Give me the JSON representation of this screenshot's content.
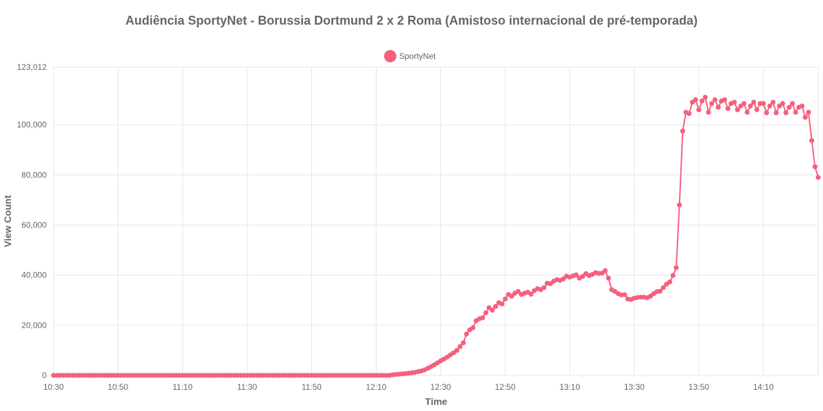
{
  "chart_data": {
    "type": "line",
    "title": "Audiência SportyNet - Borussia Dortmund 2 x 2 Roma (Amistoso internacional de pré-temporada)",
    "xlabel": "Time",
    "ylabel": "View Count",
    "x_range_minutes": [
      "10:30",
      "14:27"
    ],
    "ylim": [
      0,
      123012
    ],
    "y_ticks": [
      0,
      20000,
      40000,
      60000,
      80000,
      100000,
      123012
    ],
    "y_tick_labels": [
      "0",
      "20,000",
      "40,000",
      "60,000",
      "80,000",
      "100,000",
      "123,012"
    ],
    "x_ticks": [
      "10:30",
      "10:50",
      "11:10",
      "11:30",
      "11:50",
      "12:10",
      "12:30",
      "12:50",
      "13:10",
      "13:30",
      "13:50",
      "14:10"
    ],
    "grid": true,
    "legend": "top-center",
    "series": [
      {
        "name": "SportyNet",
        "color": "#f5607f",
        "x": [
          "10:30",
          "10:31",
          "10:32",
          "10:33",
          "10:34",
          "10:35",
          "10:36",
          "10:37",
          "10:38",
          "10:39",
          "10:40",
          "10:41",
          "10:42",
          "10:43",
          "10:44",
          "10:45",
          "10:46",
          "10:47",
          "10:48",
          "10:49",
          "10:50",
          "10:51",
          "10:52",
          "10:53",
          "10:54",
          "10:55",
          "10:56",
          "10:57",
          "10:58",
          "10:59",
          "11:00",
          "11:01",
          "11:02",
          "11:03",
          "11:04",
          "11:05",
          "11:06",
          "11:07",
          "11:08",
          "11:09",
          "11:10",
          "11:11",
          "11:12",
          "11:13",
          "11:14",
          "11:15",
          "11:16",
          "11:17",
          "11:18",
          "11:19",
          "11:20",
          "11:21",
          "11:22",
          "11:23",
          "11:24",
          "11:25",
          "11:26",
          "11:27",
          "11:28",
          "11:29",
          "11:30",
          "11:31",
          "11:32",
          "11:33",
          "11:34",
          "11:35",
          "11:36",
          "11:37",
          "11:38",
          "11:39",
          "11:40",
          "11:41",
          "11:42",
          "11:43",
          "11:44",
          "11:45",
          "11:46",
          "11:47",
          "11:48",
          "11:49",
          "11:50",
          "11:51",
          "11:52",
          "11:53",
          "11:54",
          "11:55",
          "11:56",
          "11:57",
          "11:58",
          "11:59",
          "12:00",
          "12:01",
          "12:02",
          "12:03",
          "12:04",
          "12:05",
          "12:06",
          "12:07",
          "12:08",
          "12:09",
          "12:10",
          "12:11",
          "12:12",
          "12:13",
          "12:14",
          "12:15",
          "12:16",
          "12:17",
          "12:18",
          "12:19",
          "12:20",
          "12:21",
          "12:22",
          "12:23",
          "12:24",
          "12:25",
          "12:26",
          "12:27",
          "12:28",
          "12:29",
          "12:30",
          "12:31",
          "12:32",
          "12:33",
          "12:34",
          "12:35",
          "12:36",
          "12:37",
          "12:38",
          "12:39",
          "12:40",
          "12:41",
          "12:42",
          "12:43",
          "12:44",
          "12:45",
          "12:46",
          "12:47",
          "12:48",
          "12:49",
          "12:50",
          "12:51",
          "12:52",
          "12:53",
          "12:54",
          "12:55",
          "12:56",
          "12:57",
          "12:58",
          "12:59",
          "13:00",
          "13:01",
          "13:02",
          "13:03",
          "13:04",
          "13:05",
          "13:06",
          "13:07",
          "13:08",
          "13:09",
          "13:10",
          "13:11",
          "13:12",
          "13:13",
          "13:14",
          "13:15",
          "13:16",
          "13:17",
          "13:18",
          "13:19",
          "13:20",
          "13:21",
          "13:22",
          "13:23",
          "13:24",
          "13:25",
          "13:26",
          "13:27",
          "13:28",
          "13:29",
          "13:30",
          "13:31",
          "13:32",
          "13:33",
          "13:34",
          "13:35",
          "13:36",
          "13:37",
          "13:38",
          "13:39",
          "13:40",
          "13:41",
          "13:42",
          "13:43",
          "13:44",
          "13:45",
          "13:46",
          "13:47",
          "13:48",
          "13:49",
          "13:50",
          "13:51",
          "13:52",
          "13:53",
          "13:54",
          "13:55",
          "13:56",
          "13:57",
          "13:58",
          "13:59",
          "14:00",
          "14:01",
          "14:02",
          "14:03",
          "14:04",
          "14:05",
          "14:06",
          "14:07",
          "14:08",
          "14:09",
          "14:10",
          "14:11",
          "14:12",
          "14:13",
          "14:14",
          "14:15",
          "14:16",
          "14:17",
          "14:18",
          "14:19",
          "14:20",
          "14:21",
          "14:22",
          "14:23",
          "14:24",
          "14:25",
          "14:26",
          "14:27"
        ],
        "values": [
          0,
          0,
          0,
          0,
          0,
          0,
          0,
          0,
          0,
          0,
          0,
          0,
          0,
          0,
          0,
          0,
          0,
          0,
          0,
          0,
          0,
          0,
          0,
          0,
          0,
          0,
          0,
          0,
          0,
          0,
          0,
          0,
          0,
          0,
          0,
          0,
          0,
          0,
          0,
          0,
          0,
          0,
          0,
          0,
          0,
          0,
          0,
          0,
          0,
          0,
          0,
          0,
          0,
          0,
          0,
          0,
          0,
          0,
          0,
          0,
          0,
          0,
          0,
          0,
          0,
          0,
          0,
          0,
          0,
          0,
          0,
          0,
          0,
          0,
          0,
          0,
          0,
          0,
          0,
          0,
          0,
          0,
          0,
          0,
          0,
          0,
          0,
          0,
          0,
          0,
          0,
          0,
          0,
          0,
          0,
          0,
          0,
          0,
          0,
          0,
          0,
          0,
          0,
          0,
          0,
          200,
          350,
          500,
          600,
          700,
          850,
          1000,
          1200,
          1500,
          1800,
          2200,
          2800,
          3500,
          4200,
          5000,
          5800,
          6500,
          7300,
          8200,
          9000,
          10000,
          11500,
          13000,
          16500,
          18200,
          19000,
          21800,
          22600,
          23000,
          25000,
          27000,
          26000,
          27500,
          29000,
          28500,
          30500,
          32300,
          31600,
          32800,
          33500,
          32300,
          32800,
          33200,
          32400,
          33800,
          34600,
          34200,
          35000,
          36800,
          36600,
          37600,
          38200,
          37900,
          38500,
          39600,
          39200,
          39700,
          40100,
          38800,
          39500,
          40600,
          39800,
          40300,
          41000,
          40700,
          40800,
          41800,
          38800,
          34200,
          33500,
          32600,
          32100,
          32200,
          30500,
          30300,
          30800,
          31100,
          31200,
          31200,
          31000,
          31600,
          32600,
          33400,
          33600,
          35000,
          36400,
          37300,
          39900,
          43000,
          68000,
          97500,
          105000,
          104500,
          109000,
          110000,
          106000,
          109500,
          111000,
          105000,
          108500,
          110000,
          107000,
          109500,
          110000,
          106500,
          108500,
          109000,
          106000,
          107500,
          108500,
          105000,
          107500,
          109000,
          106000,
          108500,
          108500,
          104800,
          107500,
          109000,
          104800,
          107500,
          108500,
          104800,
          107000,
          108500,
          105000,
          107000,
          107500,
          103000,
          105000,
          93700,
          83300,
          79000
        ]
      }
    ]
  }
}
